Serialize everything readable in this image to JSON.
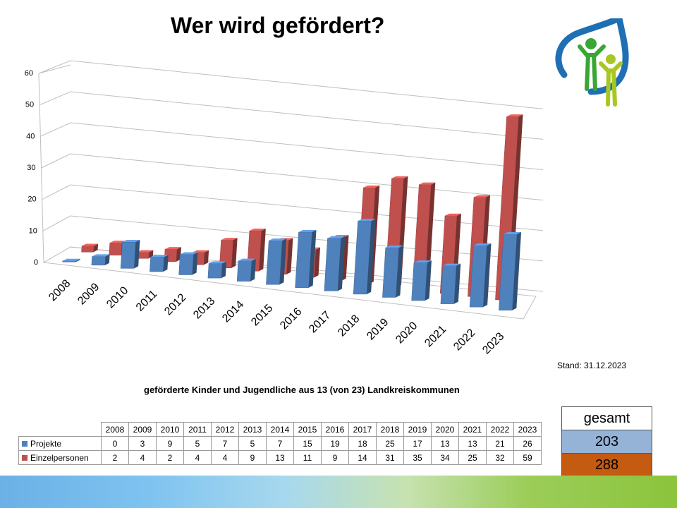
{
  "header": {
    "title": "Wer wird gefördert?"
  },
  "footer": {
    "stand": "Stand: 31.12.2023",
    "subtitle": "geförderte Kinder und Jugendliche aus 13 (von 23) Landkreiskommunen"
  },
  "totals": {
    "header": "gesamt",
    "projekte": "203",
    "einzelpersonen": "288",
    "colors": {
      "projekte": "#95b3d7",
      "einzelpersonen": "#c55a11"
    }
  },
  "chart_data": {
    "type": "bar",
    "title": "",
    "xlabel": "",
    "ylabel": "",
    "ylim": [
      0,
      60
    ],
    "yticks": [
      0,
      10,
      20,
      30,
      40,
      50,
      60
    ],
    "categories": [
      "2008",
      "2009",
      "2010",
      "2011",
      "2012",
      "2013",
      "2014",
      "2015",
      "2016",
      "2017",
      "2018",
      "2019",
      "2020",
      "2021",
      "2022",
      "2023"
    ],
    "series": [
      {
        "name": "Projekte",
        "color": "#4f81bd",
        "values": [
          0,
          3,
          9,
          5,
          7,
          5,
          7,
          15,
          19,
          18,
          25,
          17,
          13,
          13,
          21,
          26
        ]
      },
      {
        "name": "Einzelpersonen",
        "color": "#c0504d",
        "values": [
          2,
          4,
          2,
          4,
          4,
          9,
          13,
          11,
          9,
          14,
          31,
          35,
          34,
          25,
          32,
          59
        ]
      }
    ],
    "legend": "data-table",
    "grid": true,
    "style": "3d-column"
  }
}
